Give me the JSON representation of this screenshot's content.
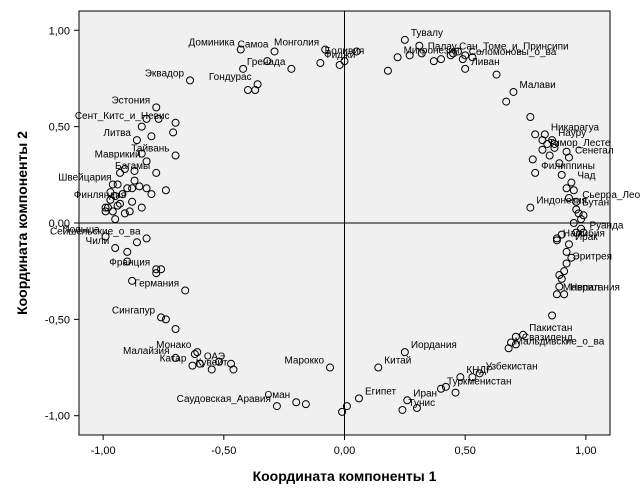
{
  "chart_data": {
    "type": "scatter",
    "xlabel": "Координата компоненты 1",
    "ylabel": "Координата компоненты 2",
    "xlim": [
      -1.1,
      1.1
    ],
    "ylim": [
      -1.1,
      1.1
    ],
    "x_ticks": [
      -1.0,
      -0.5,
      0.0,
      0.5,
      1.0
    ],
    "y_ticks": [
      -1.0,
      -0.5,
      0.0,
      0.5,
      1.0
    ],
    "x_tick_labels": [
      "-1,00",
      "-0,50",
      "0,00",
      "0,50",
      "1,00"
    ],
    "y_tick_labels": [
      "-1,00",
      "-0,50",
      "0,00",
      "0,50",
      "1,00"
    ],
    "reference_lines": {
      "x": 0,
      "y": 0
    },
    "grid": false,
    "points": [
      {
        "x": -0.43,
        "y": 0.9,
        "label": "Доминика"
      },
      {
        "x": -0.29,
        "y": 0.89,
        "label": "Самоа"
      },
      {
        "x": -0.08,
        "y": 0.9,
        "label": "Монголия"
      },
      {
        "x": 0.25,
        "y": 0.95,
        "label": "Тувалу"
      },
      {
        "x": 0.45,
        "y": 0.88,
        "label": "Сан_Томе_и_Принсипи"
      },
      {
        "x": -0.64,
        "y": 0.74,
        "label": "Эквадор"
      },
      {
        "x": -0.22,
        "y": 0.8,
        "label": "Гренада"
      },
      {
        "x": 0.22,
        "y": 0.86,
        "label": "Микронезия"
      },
      {
        "x": -0.02,
        "y": 0.82,
        "label": "Фиджи"
      },
      {
        "x": 0.0,
        "y": 0.84,
        "label": "Боливия"
      },
      {
        "x": 0.49,
        "y": 0.85,
        "label": "Соломоновы_о_ва"
      },
      {
        "x": -0.36,
        "y": 0.72,
        "label": "Гондурас"
      },
      {
        "x": 0.32,
        "y": 0.88,
        "label": "Палау"
      },
      {
        "x": 0.5,
        "y": 0.8,
        "label": "Ливан"
      },
      {
        "x": 0.7,
        "y": 0.68,
        "label": "Малави"
      },
      {
        "x": -0.78,
        "y": 0.6,
        "label": "Эстония"
      },
      {
        "x": -0.7,
        "y": 0.52,
        "label": "Сент_Китс_и_Невис"
      },
      {
        "x": 0.86,
        "y": 0.43,
        "label": "Науру"
      },
      {
        "x": -0.86,
        "y": 0.43,
        "label": "Литва"
      },
      {
        "x": 0.83,
        "y": 0.46,
        "label": "Никарагуа"
      },
      {
        "x": -0.7,
        "y": 0.35,
        "label": "Тайвань"
      },
      {
        "x": 0.93,
        "y": 0.34,
        "label": "Сенегал"
      },
      {
        "x": 0.82,
        "y": 0.38,
        "label": "Тимор_Лесте"
      },
      {
        "x": -0.82,
        "y": 0.32,
        "label": "Маврикий"
      },
      {
        "x": -0.78,
        "y": 0.26,
        "label": "Багамы"
      },
      {
        "x": 0.94,
        "y": 0.21,
        "label": "Чад"
      },
      {
        "x": -0.94,
        "y": 0.2,
        "label": "Швейцария"
      },
      {
        "x": 0.79,
        "y": 0.26,
        "label": "Филиппины"
      },
      {
        "x": -0.88,
        "y": 0.11,
        "label": "Финляндия"
      },
      {
        "x": 0.96,
        "y": 0.11,
        "label": "Сьерра_Леоне"
      },
      {
        "x": 0.96,
        "y": 0.07,
        "label": "Бутан"
      },
      {
        "x": 0.77,
        "y": 0.08,
        "label": "Индонезия"
      },
      {
        "x": -0.99,
        "y": -0.07,
        "label": "Польша"
      },
      {
        "x": 0.99,
        "y": -0.05,
        "label": "Руанда"
      },
      {
        "x": -0.82,
        "y": -0.08,
        "label": "Сейшельские_о_ва"
      },
      {
        "x": 0.88,
        "y": -0.09,
        "label": "Намибия"
      },
      {
        "x": -0.95,
        "y": -0.13,
        "label": "Чили"
      },
      {
        "x": 0.93,
        "y": -0.11,
        "label": "Ирак"
      },
      {
        "x": 0.92,
        "y": -0.21,
        "label": "Эритрея"
      },
      {
        "x": -0.78,
        "y": -0.24,
        "label": "Франция"
      },
      {
        "x": 0.91,
        "y": -0.37,
        "label": "Непал"
      },
      {
        "x": 0.88,
        "y": -0.37,
        "label": "Мавритания"
      },
      {
        "x": -0.66,
        "y": -0.35,
        "label": "Германия"
      },
      {
        "x": -0.76,
        "y": -0.49,
        "label": "Сингапур"
      },
      {
        "x": 0.74,
        "y": -0.58,
        "label": "Пакистан"
      },
      {
        "x": -0.61,
        "y": -0.67,
        "label": "Монако"
      },
      {
        "x": 0.71,
        "y": -0.63,
        "label": "Свазиленд"
      },
      {
        "x": -0.47,
        "y": -0.73,
        "label": "ОАЭ"
      },
      {
        "x": 0.25,
        "y": -0.67,
        "label": "Иордания"
      },
      {
        "x": -0.7,
        "y": -0.7,
        "label": "Малайзия"
      },
      {
        "x": 0.68,
        "y": -0.65,
        "label": "Мальдивские_о_ва"
      },
      {
        "x": -0.06,
        "y": -0.75,
        "label": "Марокко"
      },
      {
        "x": 0.14,
        "y": -0.75,
        "label": "Китай"
      },
      {
        "x": -0.63,
        "y": -0.74,
        "label": "Катар"
      },
      {
        "x": 0.48,
        "y": -0.8,
        "label": "КНДР"
      },
      {
        "x": 0.56,
        "y": -0.78,
        "label": "Узбекистан"
      },
      {
        "x": -0.46,
        "y": -0.76,
        "label": "Кувейт"
      },
      {
        "x": -0.2,
        "y": -0.93,
        "label": "Оман"
      },
      {
        "x": 0.06,
        "y": -0.91,
        "label": "Египет"
      },
      {
        "x": 0.26,
        "y": -0.92,
        "label": "Иран"
      },
      {
        "x": 0.24,
        "y": -0.97,
        "label": "Тунис"
      },
      {
        "x": 0.4,
        "y": -0.86,
        "label": "Туркменистан"
      },
      {
        "x": -0.28,
        "y": -0.95,
        "label": "Саудовская_Аравия"
      },
      {
        "x": 0.46,
        "y": -0.88
      },
      {
        "x": 0.53,
        "y": -0.8
      },
      {
        "x": -0.01,
        "y": -0.98
      },
      {
        "x": 0.01,
        "y": -0.95
      },
      {
        "x": -0.16,
        "y": -0.94
      },
      {
        "x": 0.3,
        "y": -0.96
      },
      {
        "x": 0.42,
        "y": -0.85
      },
      {
        "x": -0.52,
        "y": -0.72
      },
      {
        "x": -0.55,
        "y": -0.76
      },
      {
        "x": -0.7,
        "y": -0.55
      },
      {
        "x": -0.6,
        "y": -0.73
      },
      {
        "x": -0.74,
        "y": -0.5
      },
      {
        "x": -0.88,
        "y": -0.3
      },
      {
        "x": -0.9,
        "y": -0.2
      },
      {
        "x": -0.86,
        "y": -0.1
      },
      {
        "x": -0.9,
        "y": -0.15
      },
      {
        "x": -0.95,
        "y": 0.02
      },
      {
        "x": -0.96,
        "y": 0.06
      },
      {
        "x": -0.98,
        "y": 0.08
      },
      {
        "x": -0.97,
        "y": 0.12
      },
      {
        "x": -0.95,
        "y": 0.14
      },
      {
        "x": -0.93,
        "y": 0.1
      },
      {
        "x": -0.91,
        "y": 0.05
      },
      {
        "x": -0.89,
        "y": 0.06
      },
      {
        "x": -0.92,
        "y": 0.15
      },
      {
        "x": -0.9,
        "y": 0.18
      },
      {
        "x": -0.93,
        "y": 0.26
      },
      {
        "x": -0.91,
        "y": 0.28
      },
      {
        "x": -0.87,
        "y": 0.22
      },
      {
        "x": -0.85,
        "y": 0.19
      },
      {
        "x": -0.82,
        "y": 0.18
      },
      {
        "x": -0.96,
        "y": 0.2
      },
      {
        "x": -0.97,
        "y": 0.16
      },
      {
        "x": -0.99,
        "y": 0.08
      },
      {
        "x": -0.99,
        "y": 0.06
      },
      {
        "x": -0.84,
        "y": 0.36
      },
      {
        "x": -0.82,
        "y": 0.54
      },
      {
        "x": -0.84,
        "y": 0.5
      },
      {
        "x": -0.8,
        "y": 0.45
      },
      {
        "x": -0.77,
        "y": 0.54
      },
      {
        "x": -0.71,
        "y": 0.47
      },
      {
        "x": -0.74,
        "y": 0.17
      },
      {
        "x": -0.84,
        "y": 0.08
      },
      {
        "x": -0.8,
        "y": 0.15
      },
      {
        "x": -0.88,
        "y": 0.18
      },
      {
        "x": -0.87,
        "y": 0.27
      },
      {
        "x": -0.94,
        "y": 0.09
      },
      {
        "x": -0.76,
        "y": -0.24
      },
      {
        "x": -0.78,
        "y": -0.26
      },
      {
        "x": -0.62,
        "y": -0.68
      },
      {
        "x": -0.4,
        "y": 0.69
      },
      {
        "x": -0.37,
        "y": 0.69
      },
      {
        "x": -0.42,
        "y": 0.8
      },
      {
        "x": -0.32,
        "y": 0.84
      },
      {
        "x": -0.1,
        "y": 0.83
      },
      {
        "x": 0.05,
        "y": 0.89
      },
      {
        "x": 0.18,
        "y": 0.79
      },
      {
        "x": 0.27,
        "y": 0.87
      },
      {
        "x": 0.31,
        "y": 0.92
      },
      {
        "x": 0.37,
        "y": 0.84
      },
      {
        "x": 0.4,
        "y": 0.85
      },
      {
        "x": 0.44,
        "y": 0.87
      },
      {
        "x": 0.47,
        "y": 0.89
      },
      {
        "x": 0.5,
        "y": 0.87
      },
      {
        "x": 0.53,
        "y": 0.86
      },
      {
        "x": 0.63,
        "y": 0.77
      },
      {
        "x": 0.67,
        "y": 0.63
      },
      {
        "x": 0.77,
        "y": 0.55
      },
      {
        "x": 0.79,
        "y": 0.46
      },
      {
        "x": 0.82,
        "y": 0.43
      },
      {
        "x": 0.84,
        "y": 0.41
      },
      {
        "x": 0.87,
        "y": 0.41
      },
      {
        "x": 0.87,
        "y": 0.39
      },
      {
        "x": 0.85,
        "y": 0.35
      },
      {
        "x": 0.89,
        "y": 0.31
      },
      {
        "x": 0.92,
        "y": 0.37
      },
      {
        "x": 0.9,
        "y": 0.25
      },
      {
        "x": 0.92,
        "y": 0.18
      },
      {
        "x": 0.93,
        "y": 0.13
      },
      {
        "x": 0.95,
        "y": 0.17
      },
      {
        "x": 0.97,
        "y": 0.05
      },
      {
        "x": 0.99,
        "y": 0.04
      },
      {
        "x": 0.98,
        "y": 0.02
      },
      {
        "x": 0.95,
        "y": 0.0
      },
      {
        "x": 0.98,
        "y": -0.03
      },
      {
        "x": 0.96,
        "y": -0.05
      },
      {
        "x": 0.9,
        "y": -0.06
      },
      {
        "x": 0.88,
        "y": -0.08
      },
      {
        "x": 0.92,
        "y": -0.15
      },
      {
        "x": 0.94,
        "y": -0.18
      },
      {
        "x": 0.91,
        "y": -0.25
      },
      {
        "x": 0.89,
        "y": -0.27
      },
      {
        "x": 0.9,
        "y": -0.29
      },
      {
        "x": 0.89,
        "y": -0.33
      },
      {
        "x": 0.86,
        "y": -0.48
      },
      {
        "x": 0.71,
        "y": -0.59
      },
      {
        "x": 0.69,
        "y": -0.62
      },
      {
        "x": 0.78,
        "y": 0.33
      }
    ]
  }
}
